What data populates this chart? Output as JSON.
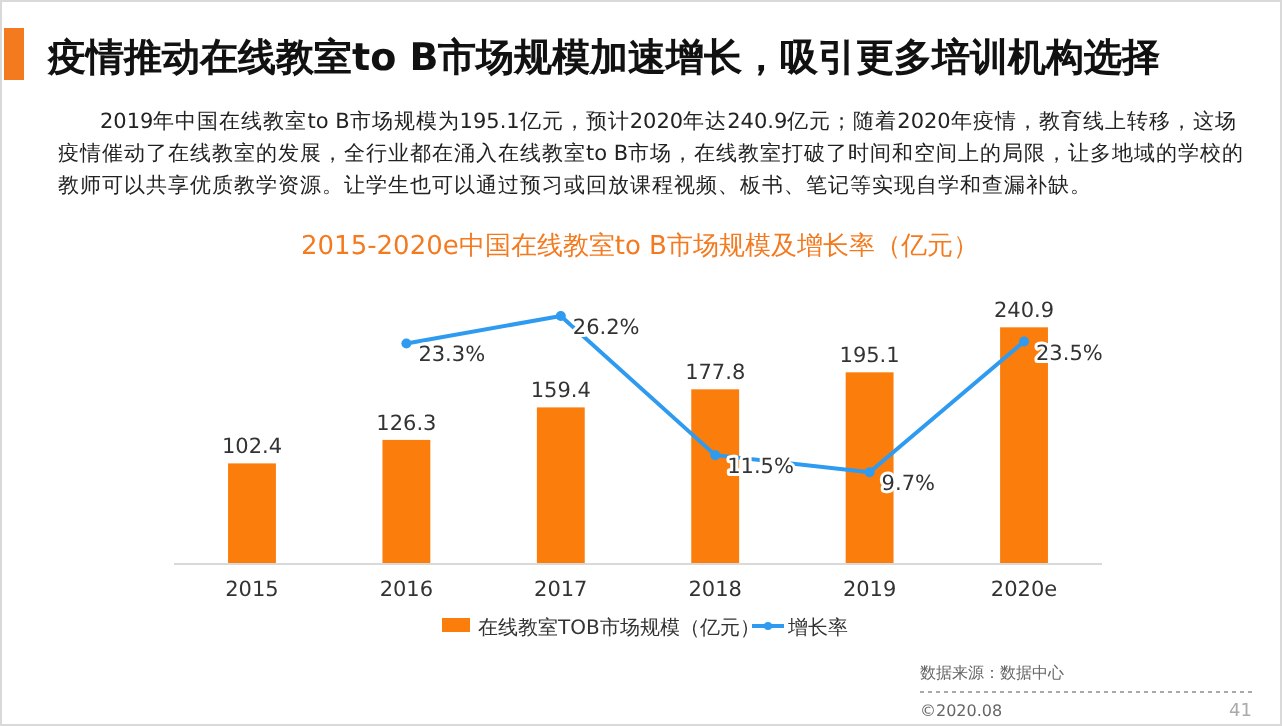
{
  "chart_data": {
    "type": "bar",
    "title": "疫情推动在线教室to B市场规模加速增长，吸引更多培训机构选择",
    "subtitle": "2019年中国在线教室to B市场规模为195.1亿元，预计2020年达240.9亿元；随着2020年疫情，教育线上转移，这场疫情催动了在线教室的发展，全行业都在涌入在线教室to B市场，在线教室打破了时间和空间上的局限，让多地域的学校的教师可以共享优质教学资源。让学生也可以通过预习或回放课程视频、板书、笔记等实现自学和查漏补缺。",
    "annotations": [
      "2015-2020e中国在线教室to B市场规模及增长率（亿元）",
      "数据来源：数据中心",
      "©2020.08",
      "41"
    ],
    "categories": [
      "2015",
      "2016",
      "2017",
      "2018",
      "2019",
      "2020e"
    ],
    "series": [
      {
        "name": "在线教室TOB市场规模（亿元）",
        "color": "#fb7d0b",
        "values": [
          102.4,
          126.3,
          159.4,
          177.8,
          195.1,
          240.9
        ],
        "value_labels": [
          "102.4",
          "126.3",
          "159.4",
          "177.8",
          "195.1",
          "240.9"
        ]
      },
      {
        "name": "增长率",
        "type": "line",
        "axis": "y2",
        "color": "#2e9bf0",
        "values": [
          null,
          23.3,
          26.2,
          11.5,
          9.7,
          23.5
        ],
        "value_labels": [
          null,
          "23.3%",
          "26.2%",
          "11.5%",
          "9.7%",
          "23.5%"
        ]
      }
    ],
    "tick_labels": "x",
    "legend": "bottom",
    "marker": "circle"
  }
}
